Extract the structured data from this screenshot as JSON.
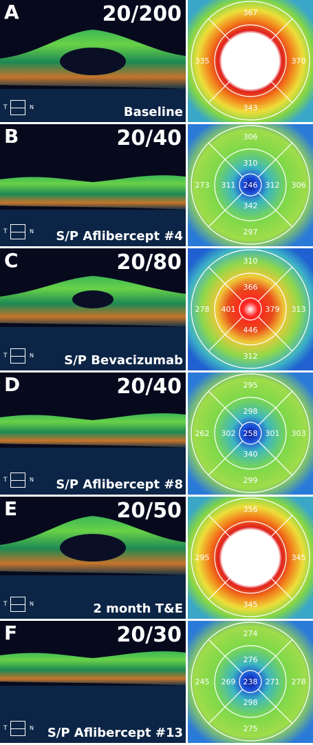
{
  "panels": [
    {
      "letter": "A",
      "acuity": "20/200",
      "caption": "Baseline",
      "map": {
        "type": "edema-large",
        "top": "367",
        "left": "335",
        "right": "370",
        "bottom": "343",
        "center": "",
        "inner_top": "",
        "inner_left": "",
        "inner_right": "",
        "inner_bottom": ""
      }
    },
    {
      "letter": "B",
      "acuity": "20/40",
      "caption": "S/P Aflibercept #4",
      "map": {
        "type": "dry",
        "top": "306",
        "left": "273",
        "right": "306",
        "bottom": "297",
        "center": "246",
        "inner_top": "310",
        "inner_left": "311",
        "inner_right": "312",
        "inner_bottom": "342"
      }
    },
    {
      "letter": "C",
      "acuity": "20/80",
      "caption": "S/P Bevacizumab",
      "map": {
        "type": "edema-small",
        "top": "310",
        "left": "278",
        "right": "313",
        "bottom": "312",
        "center": "",
        "inner_top": "366",
        "inner_left": "401",
        "inner_right": "379",
        "inner_bottom": "446"
      }
    },
    {
      "letter": "D",
      "acuity": "20/40",
      "caption": "S/P Aflibercept #8",
      "map": {
        "type": "dry",
        "top": "295",
        "left": "262",
        "right": "303",
        "bottom": "299",
        "center": "258",
        "inner_top": "298",
        "inner_left": "302",
        "inner_right": "301",
        "inner_bottom": "340"
      }
    },
    {
      "letter": "E",
      "acuity": "20/50",
      "caption": "2 month T&E",
      "map": {
        "type": "edema-large",
        "top": "356",
        "left": "295",
        "right": "345",
        "bottom": "345",
        "center": "",
        "inner_top": "",
        "inner_left": "",
        "inner_right": "",
        "inner_bottom": ""
      }
    },
    {
      "letter": "F",
      "acuity": "20/30",
      "caption": "S/P Aflibercept #13",
      "map": {
        "type": "dry",
        "top": "274",
        "left": "245",
        "right": "278",
        "bottom": "275",
        "center": "238",
        "inner_top": "276",
        "inner_left": "269",
        "inner_right": "271",
        "inner_bottom": "298"
      }
    }
  ],
  "orientation": {
    "temporal": "T",
    "nasal": "N"
  }
}
